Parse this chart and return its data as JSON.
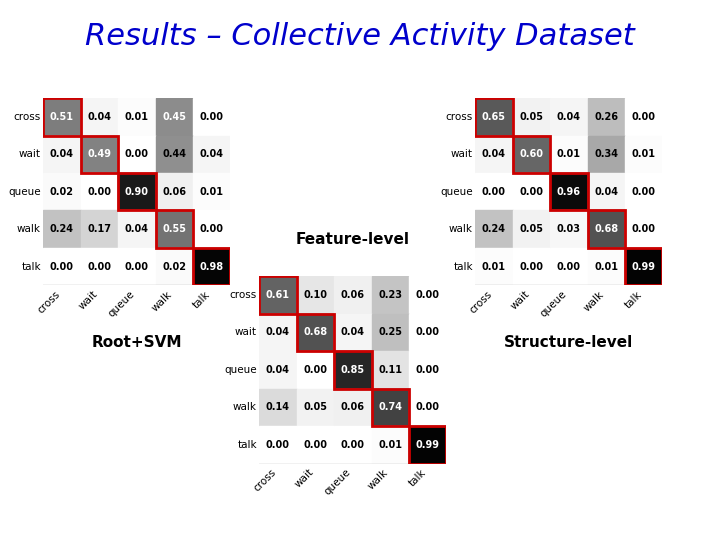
{
  "title": "Results – Collective Activity Dataset",
  "title_color": "#0000cc",
  "title_fontsize": 22,
  "categories": [
    "cross",
    "wait",
    "queue",
    "walk",
    "talk"
  ],
  "matrix_root_svm": [
    [
      0.51,
      0.04,
      0.01,
      0.45,
      0.0
    ],
    [
      0.04,
      0.49,
      0.0,
      0.44,
      0.04
    ],
    [
      0.02,
      0.0,
      0.9,
      0.06,
      0.01
    ],
    [
      0.24,
      0.17,
      0.04,
      0.55,
      0.0
    ],
    [
      0.0,
      0.0,
      0.0,
      0.02,
      0.98
    ]
  ],
  "matrix_feature_level": [
    [
      0.61,
      0.1,
      0.06,
      0.23,
      0.0
    ],
    [
      0.04,
      0.68,
      0.04,
      0.25,
      0.0
    ],
    [
      0.04,
      0.0,
      0.85,
      0.11,
      0.0
    ],
    [
      0.14,
      0.05,
      0.06,
      0.74,
      0.0
    ],
    [
      0.0,
      0.0,
      0.0,
      0.01,
      0.99
    ]
  ],
  "matrix_structure_level": [
    [
      0.65,
      0.05,
      0.04,
      0.26,
      0.0
    ],
    [
      0.04,
      0.6,
      0.01,
      0.34,
      0.01
    ],
    [
      0.0,
      0.0,
      0.96,
      0.04,
      0.0
    ],
    [
      0.24,
      0.05,
      0.03,
      0.68,
      0.0
    ],
    [
      0.01,
      0.0,
      0.0,
      0.01,
      0.99
    ]
  ],
  "label_root_svm": "Root+SVM",
  "label_feature": "Feature-level",
  "label_structure": "Structure-level",
  "background_color": "#ffffff",
  "red_border": "#cc0000",
  "white_text_threshold": 0.45,
  "cell_fontsize": 7,
  "label_fontsize": 8,
  "matrix_label_fontsize": 11,
  "row_label_fontsize": 7.5,
  "col_label_fontsize": 7.5
}
